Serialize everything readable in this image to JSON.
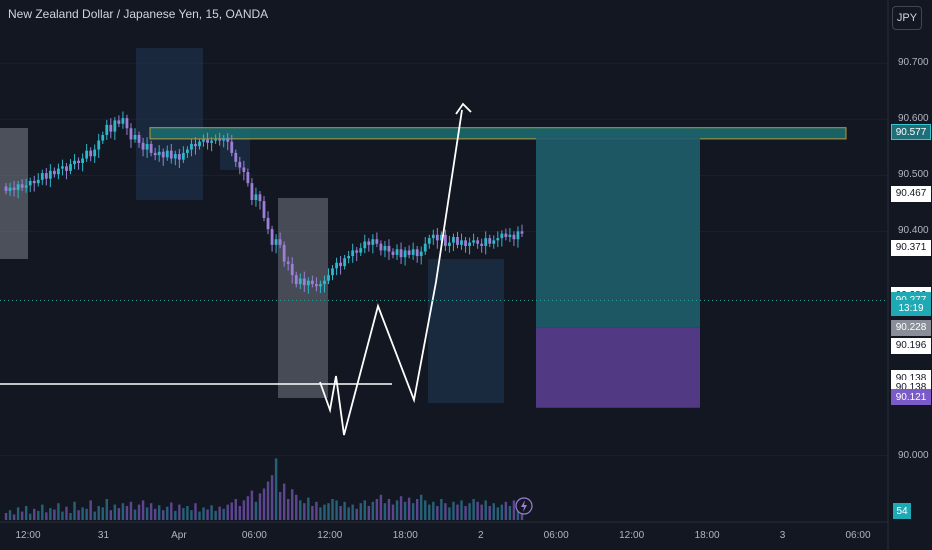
{
  "header": {
    "title": "New Zealand Dollar / Japanese Yen, 15, OANDA",
    "currency_button": "JPY"
  },
  "colors": {
    "up": "#26a69a",
    "down": "#b39ddb",
    "up_body": "#2fb6c9",
    "down_body": "#9c7fd6",
    "profit_zone": "#1e5e6a",
    "loss_zone": "#5a3d8f",
    "zone_box": "#7a7f8a",
    "ghost_box": "#1f3a58",
    "resistance": "#1a6f74",
    "resistance_border": "#d6b23a",
    "lines": "#ffffff"
  },
  "chart_data": {
    "type": "candlestick",
    "title": "New Zealand Dollar / Japanese Yen, 15, OANDA",
    "y_axis_ticks": [
      90.7,
      90.6,
      90.5,
      90.4,
      90.0
    ],
    "ylim": [
      89.96,
      90.77
    ],
    "x_axis_ticks": [
      "12:00",
      "31",
      "Apr",
      "06:00",
      "12:00",
      "18:00",
      "2",
      "06:00",
      "12:00",
      "18:00",
      "3",
      "06:00"
    ],
    "price_tags": [
      {
        "label": "90.577",
        "value": 90.577,
        "style": "teal"
      },
      {
        "label": "90.467",
        "value": 90.467,
        "style": "white"
      },
      {
        "label": "90.371",
        "value": 90.371,
        "style": "white"
      },
      {
        "label": "90.286",
        "value": 90.286,
        "style": "white"
      },
      {
        "label": "90.277",
        "value": 90.277,
        "style": "current"
      },
      {
        "label": "13:19",
        "value": 90.263,
        "style": "current_time"
      },
      {
        "label": "90.228",
        "value": 90.228,
        "style": "grey"
      },
      {
        "label": "90.196",
        "value": 90.196,
        "style": "white"
      },
      {
        "label": "90.138",
        "value": 90.138,
        "style": "white"
      },
      {
        "label": "90.138",
        "value": 90.121,
        "style": "white"
      },
      {
        "label": "90.121",
        "value": 90.104,
        "style": "purple"
      }
    ],
    "volume_tag": "54",
    "long_position": {
      "entry": 90.228,
      "target": 90.577,
      "stop": 90.121
    },
    "resistance_zone": [
      90.565,
      90.585
    ],
    "support_line": 90.165,
    "open": 90.48,
    "drift": [
      -0.008,
      0.006,
      -0.004,
      0.01,
      -0.006,
      0.004,
      0.008,
      -0.004,
      0.006,
      0.012,
      -0.01,
      0.014,
      -0.006,
      0.01,
      0.004,
      -0.008,
      0.012,
      0.006,
      -0.004,
      0.008,
      0.014,
      -0.01,
      0.012,
      0.016,
      0.01,
      0.018,
      -0.012,
      0.02,
      -0.006,
      0.01,
      -0.018,
      -0.02,
      0.008,
      -0.014,
      -0.012,
      0.01,
      -0.016,
      -0.004,
      0.006,
      -0.01,
      0.012,
      -0.014,
      0.008,
      -0.01,
      0.012,
      0.006,
      0.01,
      -0.004,
      0.008,
      0.004,
      -0.006,
      0.004,
      0.002,
      -0.002,
      0.004,
      -0.006,
      -0.02,
      -0.016,
      -0.01,
      -0.008,
      -0.02,
      -0.03,
      0.01,
      -0.012,
      -0.03,
      -0.02,
      -0.028,
      0.01,
      -0.01,
      -0.03,
      -0.004,
      -0.02,
      -0.016,
      0.01,
      -0.012,
      0.008,
      -0.006,
      -0.004,
      0.004,
      0.006,
      0.01,
      0.012,
      0.01,
      -0.006,
      0.014,
      0.004,
      0.01,
      -0.004,
      0.008,
      0.012,
      -0.006,
      0.01,
      -0.008,
      -0.012,
      0.008,
      -0.01,
      -0.006,
      0.01,
      -0.014,
      0.012,
      -0.008,
      0.01,
      -0.012,
      0.008,
      0.014,
      0.01,
      0.006,
      -0.01,
      0.01,
      -0.02,
      0.006,
      0.01,
      -0.014,
      0.008,
      -0.01,
      0.006,
      0.004,
      -0.006,
      -0.004,
      0.014,
      -0.01,
      0.006,
      0.004,
      0.008,
      -0.006,
      0.004,
      -0.008,
      0.014,
      -0.004
    ],
    "volume": [
      10,
      14,
      8,
      18,
      12,
      20,
      9,
      16,
      13,
      22,
      11,
      17,
      15,
      24,
      12,
      19,
      10,
      26,
      14,
      18,
      16,
      28,
      12,
      20,
      18,
      30,
      14,
      22,
      17,
      24,
      20,
      26,
      15,
      22,
      28,
      18,
      24,
      16,
      21,
      14,
      19,
      25,
      13,
      22,
      17,
      20,
      14,
      24,
      12,
      18,
      15,
      21,
      13,
      19,
      16,
      22,
      25,
      30,
      20,
      28,
      34,
      42,
      26,
      38,
      45,
      55,
      64,
      88,
      40,
      52,
      30,
      44,
      36,
      28,
      24,
      32,
      20,
      26,
      18,
      22,
      24,
      30,
      28,
      20,
      26,
      18,
      22,
      16,
      24,
      28,
      20,
      26,
      30,
      36,
      24,
      30,
      22,
      28,
      34,
      26,
      32,
      24,
      30,
      36,
      28,
      22,
      26,
      20,
      30,
      24,
      18,
      26,
      22,
      28,
      20,
      24,
      30,
      26,
      22,
      28,
      20,
      24,
      18,
      22,
      26,
      20,
      28,
      24,
      30
    ]
  }
}
